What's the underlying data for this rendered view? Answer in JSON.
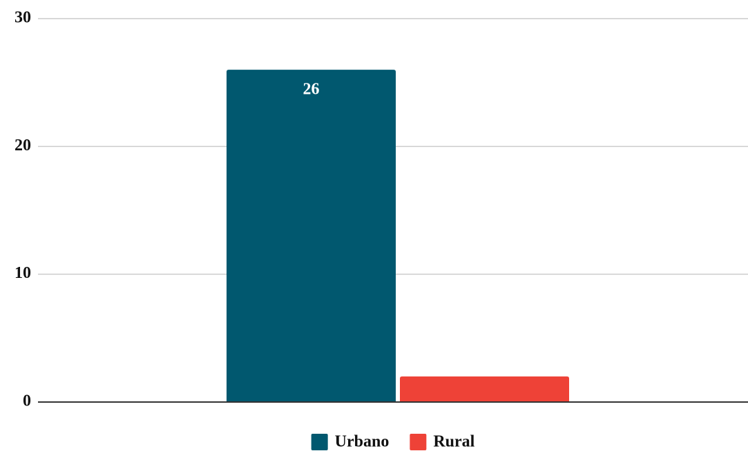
{
  "chart_data": {
    "type": "bar",
    "categories": [
      null
    ],
    "series": [
      {
        "name": "Urbano",
        "color": "#01586f",
        "values": [
          26
        ],
        "data_labels": true
      },
      {
        "name": "Rural",
        "color": "#ee4237",
        "values": [
          2
        ],
        "data_labels": false
      }
    ],
    "ylim": [
      0,
      30
    ],
    "yticks": [
      0,
      10,
      20,
      30
    ],
    "grid": true,
    "legend": "bottom"
  }
}
